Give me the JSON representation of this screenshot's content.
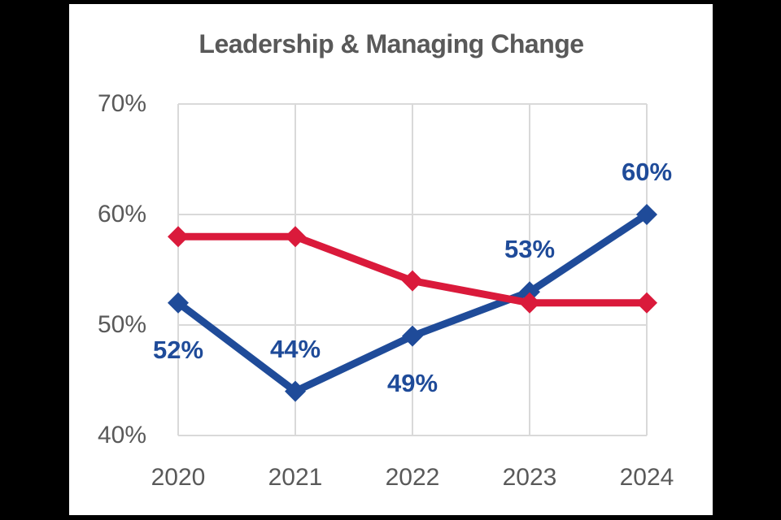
{
  "chart_data": {
    "type": "line",
    "title": "Leadership & Managing Change",
    "categories": [
      "2020",
      "2021",
      "2022",
      "2023",
      "2024"
    ],
    "series": [
      {
        "name": "blue",
        "color": "#1F4B99",
        "values": [
          52,
          44,
          49,
          53,
          60
        ],
        "data_labels": [
          "52%",
          "44%",
          "49%",
          "53%",
          "60%"
        ],
        "label_positions": [
          "below",
          "above",
          "below",
          "above",
          "above"
        ]
      },
      {
        "name": "red",
        "color": "#DA1A3B",
        "values": [
          58,
          58,
          54,
          52,
          52
        ],
        "data_labels": [],
        "label_positions": []
      }
    ],
    "y_ticks": [
      {
        "label": "70%",
        "value": 70
      },
      {
        "label": "60%",
        "value": 60
      },
      {
        "label": "50%",
        "value": 50
      },
      {
        "label": "40%",
        "value": 40
      }
    ],
    "ylim": [
      40,
      70
    ],
    "grid": true,
    "grid_color": "#D9D9D9",
    "text_color": "#595959",
    "legend": "none",
    "marker": "diamond"
  }
}
